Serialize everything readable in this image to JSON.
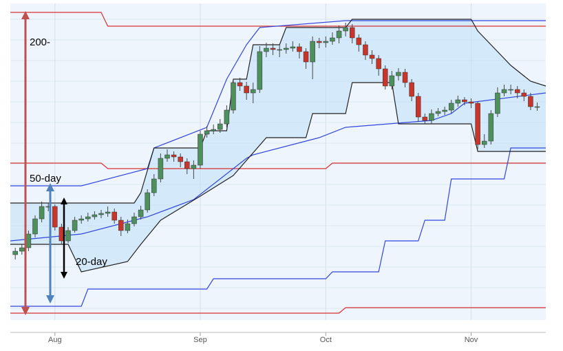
{
  "chart_data": {
    "type": "candlestick",
    "annotations": [
      "200-",
      "50-day",
      "20-day"
    ],
    "x": [
      0,
      1,
      2,
      3,
      4,
      5,
      6,
      7,
      8,
      9,
      10,
      11,
      12,
      13,
      14,
      15,
      16,
      17,
      18,
      19,
      20,
      21,
      22,
      23,
      24,
      25,
      26,
      27,
      28,
      29,
      30,
      31,
      32,
      33,
      34,
      35,
      36,
      37,
      38,
      39,
      40,
      41,
      42,
      43,
      44,
      45,
      46,
      47,
      48,
      49,
      50,
      51,
      52,
      53,
      54,
      55,
      56,
      57,
      58,
      59,
      60,
      61,
      62,
      63,
      64,
      65,
      66,
      67,
      68,
      69,
      70,
      71,
      72,
      73,
      74,
      75,
      76,
      77,
      78,
      79
    ],
    "open": [
      95,
      100,
      105,
      125,
      147,
      165,
      165,
      135,
      115,
      130,
      145,
      147,
      150,
      153,
      155,
      157,
      145,
      130,
      140,
      150,
      160,
      185,
      205,
      235,
      240,
      237,
      230,
      220,
      225,
      270,
      275,
      277,
      285,
      305,
      345,
      340,
      330,
      335,
      390,
      395,
      393,
      393,
      395,
      397,
      390,
      375,
      405,
      403,
      405,
      410,
      420,
      425,
      410,
      400,
      385,
      380,
      365,
      340,
      355,
      360,
      345,
      325,
      295,
      290,
      300,
      303,
      305,
      315,
      320,
      317,
      315,
      255,
      260,
      300,
      330,
      335,
      335,
      330,
      325,
      310
    ],
    "high": [
      105,
      110,
      130,
      152,
      172,
      170,
      168,
      140,
      135,
      150,
      152,
      156,
      158,
      160,
      165,
      162,
      150,
      146,
      156,
      166,
      190,
      212,
      242,
      248,
      245,
      242,
      235,
      232,
      275,
      282,
      284,
      292,
      312,
      350,
      352,
      346,
      345,
      398,
      403,
      402,
      400,
      402,
      405,
      402,
      395,
      412,
      410,
      412,
      418,
      428,
      432,
      430,
      415,
      405,
      392,
      385,
      370,
      362,
      366,
      365,
      350,
      330,
      300,
      306,
      308,
      310,
      320,
      326,
      324,
      322,
      318,
      270,
      305,
      338,
      342,
      342,
      340,
      335,
      330,
      316
    ],
    "low": [
      88,
      95,
      100,
      120,
      142,
      158,
      130,
      110,
      112,
      127,
      140,
      143,
      146,
      148,
      150,
      140,
      122,
      126,
      136,
      146,
      156,
      180,
      200,
      230,
      230,
      222,
      212,
      205,
      220,
      265,
      270,
      272,
      280,
      300,
      333,
      320,
      315,
      330,
      382,
      385,
      382,
      387,
      390,
      380,
      365,
      350,
      395,
      396,
      400,
      402,
      412,
      402,
      390,
      378,
      372,
      355,
      335,
      335,
      348,
      338,
      318,
      288,
      285,
      285,
      296,
      298,
      300,
      310,
      312,
      308,
      248,
      250,
      255,
      295,
      325,
      328,
      322,
      318,
      305,
      304
    ],
    "close": [
      100,
      105,
      125,
      147,
      165,
      165,
      135,
      115,
      130,
      145,
      147,
      150,
      153,
      155,
      157,
      145,
      130,
      140,
      150,
      160,
      185,
      205,
      235,
      240,
      237,
      230,
      220,
      225,
      270,
      275,
      277,
      285,
      305,
      345,
      340,
      330,
      335,
      390,
      395,
      393,
      393,
      395,
      397,
      390,
      375,
      405,
      403,
      405,
      410,
      420,
      425,
      410,
      400,
      385,
      380,
      365,
      340,
      355,
      360,
      345,
      325,
      295,
      290,
      300,
      303,
      305,
      315,
      320,
      317,
      315,
      255,
      260,
      300,
      330,
      335,
      335,
      330,
      325,
      310,
      310
    ],
    "up_color": "#4e8f5e",
    "down_color": "#c8352b",
    "series": [
      {
        "color": "#d83030",
        "x": [
          -0.75,
          13,
          14,
          80.3
        ],
        "values": [
          447,
          447,
          427,
          427
        ]
      },
      {
        "color": "#d83030",
        "x": [
          -0.75,
          13,
          14,
          47,
          48,
          80.3
        ],
        "values": [
          228,
          228,
          220,
          220,
          228,
          228
        ]
      },
      {
        "color": "#d83030",
        "x": [
          -0.75,
          49,
          50,
          80.3
        ],
        "values": [
          10,
          10,
          18,
          18
        ]
      },
      {
        "color": "#3344dd",
        "x": [
          -0.75,
          10,
          20,
          21,
          29,
          32,
          35,
          37,
          50,
          80.3
        ],
        "values": [
          195,
          195,
          220,
          250,
          280,
          350,
          400,
          425,
          435,
          435
        ]
      },
      {
        "color": "#3344dd",
        "x": [
          -0.75,
          10,
          20,
          27,
          35,
          36,
          46,
          50,
          63,
          66,
          68,
          80.3
        ],
        "values": [
          115,
          125,
          150,
          175,
          235,
          240,
          265,
          280,
          290,
          300,
          315,
          330
        ]
      },
      {
        "color": "#3344dd",
        "x": [
          -0.75,
          10,
          11,
          29,
          30,
          47,
          48,
          55,
          56,
          61,
          62,
          65,
          66,
          74,
          75,
          80.3
        ],
        "values": [
          20,
          20,
          45,
          45,
          60,
          60,
          70,
          70,
          115,
          115,
          145,
          145,
          205,
          205,
          250,
          250
        ]
      },
      {
        "color": "#222222",
        "x": [
          -0.75,
          9,
          18,
          19,
          21,
          28,
          29,
          32,
          33,
          35,
          36,
          40,
          41,
          50,
          51,
          69,
          70,
          72,
          75,
          78,
          80.3
        ],
        "values": [
          170,
          170,
          170,
          185,
          250,
          250,
          275,
          275,
          350,
          350,
          400,
          400,
          425,
          425,
          437,
          437,
          420,
          400,
          370,
          347,
          340
        ]
      },
      {
        "color": "#222222",
        "x": [
          -0.75,
          8,
          10,
          17,
          19,
          22,
          28,
          33,
          38,
          44,
          45,
          50,
          51,
          57,
          58,
          69,
          70,
          80.3
        ],
        "values": [
          110,
          110,
          70,
          85,
          110,
          145,
          180,
          210,
          265,
          265,
          300,
          300,
          345,
          345,
          285,
          285,
          245,
          245
        ]
      }
    ],
    "xlim": [
      -0.75,
      80.3
    ],
    "ylim": [
      0,
      460
    ],
    "xticks": [
      {
        "value": 6,
        "label": "Aug"
      },
      {
        "value": 28,
        "label": "Sep"
      },
      {
        "value": 47,
        "label": "Oct"
      },
      {
        "value": 69,
        "label": "Nov"
      }
    ]
  }
}
